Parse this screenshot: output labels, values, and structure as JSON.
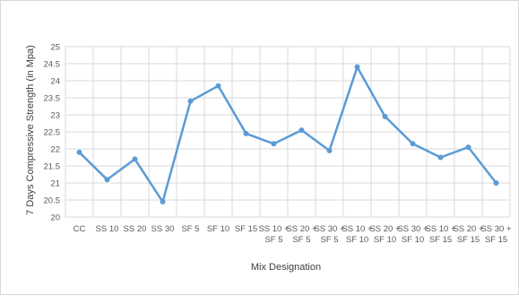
{
  "chart_data": {
    "type": "line",
    "title": "",
    "xlabel": "Mix Designation",
    "ylabel": "7 Days Compressive Strength (in Mpa)",
    "ylim": [
      20,
      25
    ],
    "ytick_step": 0.5,
    "yticks": [
      "20",
      "20.5",
      "21",
      "21.5",
      "22",
      "22.5",
      "23",
      "23.5",
      "24",
      "24.5",
      "25"
    ],
    "grid": "vertical and horizontal gridlines",
    "legend": "none",
    "line_color": "#5b9bd5",
    "categories": [
      [
        "CC"
      ],
      [
        "SS 10"
      ],
      [
        "SS 20"
      ],
      [
        "SS 30"
      ],
      [
        "SF 5"
      ],
      [
        "SF 10"
      ],
      [
        "SF 15"
      ],
      [
        "SS 10 +",
        "SF 5"
      ],
      [
        "SS 20 +",
        "SF 5"
      ],
      [
        "SS 30 +",
        "SF 5"
      ],
      [
        "SS 10 +",
        "SF 10"
      ],
      [
        "SS 20 +",
        "SF 10"
      ],
      [
        "SS 30 +",
        "SF 10"
      ],
      [
        "SS 10 +",
        "SF 15"
      ],
      [
        "SS 20 +",
        "SF 15"
      ],
      [
        "SS 30 +",
        "SF 15"
      ]
    ],
    "series": [
      {
        "values": [
          21.9,
          21.1,
          21.7,
          20.45,
          23.4,
          23.85,
          22.45,
          22.15,
          22.55,
          21.95,
          24.4,
          22.95,
          22.15,
          21.75,
          22.05,
          21.0
        ]
      }
    ]
  }
}
